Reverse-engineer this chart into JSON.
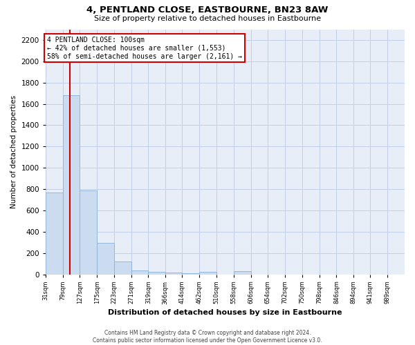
{
  "title": "4, PENTLAND CLOSE, EASTBOURNE, BN23 8AW",
  "subtitle": "Size of property relative to detached houses in Eastbourne",
  "xlabel": "Distribution of detached houses by size in Eastbourne",
  "ylabel": "Number of detached properties",
  "footer_line1": "Contains HM Land Registry data © Crown copyright and database right 2024.",
  "footer_line2": "Contains public sector information licensed under the Open Government Licence v3.0.",
  "annotation_title": "4 PENTLAND CLOSE: 100sqm",
  "annotation_line1": "← 42% of detached houses are smaller (1,553)",
  "annotation_line2": "58% of semi-detached houses are larger (2,161) →",
  "red_line_x": 100,
  "bar_color": "#ccdcf0",
  "bar_edge_color": "#8ab0d8",
  "red_line_color": "#cc0000",
  "grid_color": "#c0cfe8",
  "background_color": "#e8eef8",
  "bin_edges": [
    31,
    79,
    127,
    175,
    223,
    271,
    319,
    366,
    414,
    462,
    510,
    558,
    606,
    654,
    702,
    750,
    798,
    846,
    894,
    941,
    989
  ],
  "bin_labels": [
    "31sqm",
    "79sqm",
    "127sqm",
    "175sqm",
    "223sqm",
    "271sqm",
    "319sqm",
    "366sqm",
    "414sqm",
    "462sqm",
    "510sqm",
    "558sqm",
    "606sqm",
    "654sqm",
    "702sqm",
    "750sqm",
    "798sqm",
    "846sqm",
    "894sqm",
    "941sqm",
    "989sqm"
  ],
  "bar_heights": [
    770,
    1680,
    790,
    295,
    120,
    35,
    25,
    15,
    10,
    25,
    0,
    30,
    0,
    0,
    0,
    0,
    0,
    0,
    0,
    0
  ],
  "ylim": [
    0,
    2300
  ],
  "yticks": [
    0,
    200,
    400,
    600,
    800,
    1000,
    1200,
    1400,
    1600,
    1800,
    2000,
    2200
  ]
}
